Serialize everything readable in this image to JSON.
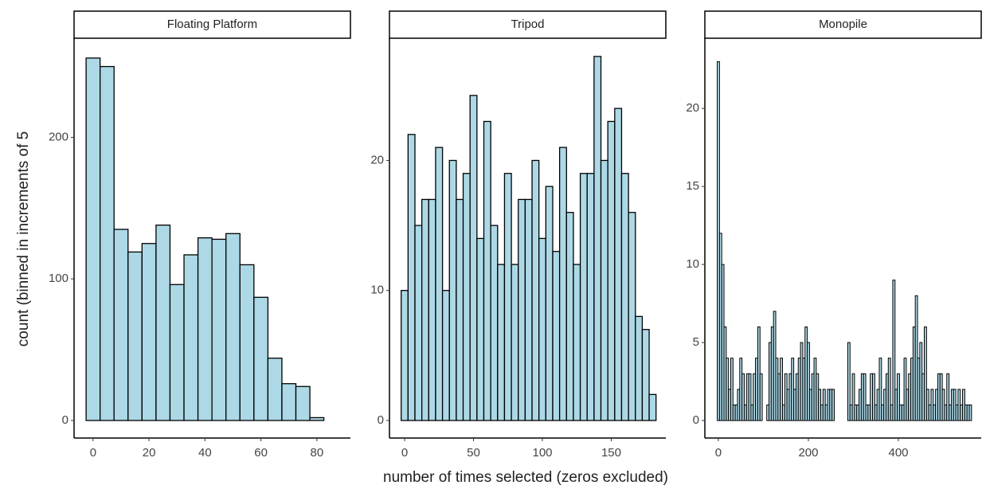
{
  "xlabel": "number of times selected (zeros excluded)",
  "ylabel": "count (binned in increments of 5",
  "chart_data": [
    {
      "type": "histogram",
      "title": "Floating Platform",
      "color": "#add8e6",
      "bins": [
        -2.5,
        2.5,
        7.5,
        12.5,
        17.5,
        22.5,
        27.5,
        32.5,
        37.5,
        42.5,
        47.5,
        52.5,
        57.5,
        62.5,
        67.5,
        72.5,
        77.5,
        82.5
      ],
      "values": [
        256,
        250,
        135,
        119,
        125,
        138,
        96,
        117,
        129,
        128,
        132,
        110,
        87,
        44,
        26,
        24,
        2
      ],
      "xlim": [
        -6.8,
        92
      ],
      "ylim": [
        -12.4,
        270
      ],
      "xticks": [
        0,
        20,
        40,
        60,
        80
      ],
      "yticks": [
        0,
        100,
        200
      ]
    },
    {
      "type": "histogram",
      "title": "Tripod",
      "color": "#add8e6",
      "bins": [
        -2.5,
        2.5,
        7.5,
        12.5,
        17.5,
        22.5,
        27.5,
        32.5,
        37.5,
        42.5,
        47.5,
        52.5,
        57.5,
        62.5,
        67.5,
        72.5,
        77.5,
        82.5,
        87.5,
        92.5,
        97.5,
        102.5,
        107.5,
        112.5,
        117.5,
        122.5,
        127.5,
        132.5,
        137.5,
        142.5,
        147.5,
        152.5,
        157.5,
        162.5,
        167.5,
        172.5,
        177.5,
        182.5
      ],
      "values": [
        10,
        22,
        15,
        17,
        17,
        21,
        10,
        20,
        17,
        19,
        25,
        14,
        23,
        15,
        12,
        19,
        12,
        17,
        17,
        20,
        14,
        18,
        13,
        21,
        16,
        12,
        19,
        19,
        28,
        20,
        23,
        24,
        19,
        16,
        8,
        7,
        2
      ],
      "xlim": [
        -11,
        189.6
      ],
      "ylim": [
        -1.35,
        29.4
      ],
      "xticks": [
        0,
        50,
        100,
        150
      ],
      "yticks": [
        0,
        10,
        20
      ]
    },
    {
      "type": "histogram",
      "title": "Monopile",
      "color": "#add8e6",
      "bins": [
        -2.5,
        2.5,
        7.5,
        12.5,
        17.5,
        22.5,
        27.5,
        32.5,
        37.5,
        42.5,
        47.5,
        52.5,
        57.5,
        62.5,
        67.5,
        72.5,
        77.5,
        82.5,
        87.5,
        92.5,
        97.5,
        102.5,
        107.5,
        112.5,
        117.5,
        122.5,
        127.5,
        132.5,
        137.5,
        142.5,
        147.5,
        152.5,
        157.5,
        162.5,
        167.5,
        172.5,
        177.5,
        182.5,
        187.5,
        192.5,
        197.5,
        202.5,
        207.5,
        212.5,
        217.5,
        222.5,
        227.5,
        232.5,
        237.5,
        242.5,
        247.5,
        252.5,
        257.5,
        262.5,
        267.5,
        272.5,
        277.5,
        282.5,
        287.5,
        292.5,
        297.5,
        302.5,
        307.5,
        312.5,
        317.5,
        322.5,
        327.5,
        332.5,
        337.5,
        342.5,
        347.5,
        352.5,
        357.5,
        362.5,
        367.5,
        372.5,
        377.5,
        382.5,
        387.5,
        392.5,
        397.5,
        402.5,
        407.5,
        412.5,
        417.5,
        422.5,
        427.5,
        432.5,
        437.5,
        442.5,
        447.5,
        452.5,
        457.5,
        462.5,
        467.5,
        472.5,
        477.5,
        482.5,
        487.5,
        492.5,
        497.5,
        502.5,
        507.5,
        512.5,
        517.5,
        522.5,
        527.5,
        532.5,
        537.5,
        542.5,
        547.5,
        552.5,
        557.5,
        562.5
      ],
      "values": [
        23,
        12,
        10,
        6,
        4,
        2,
        4,
        1,
        1,
        2,
        4,
        3,
        1,
        3,
        3,
        1,
        3,
        4,
        6,
        3,
        0,
        0,
        1,
        5,
        6,
        7,
        4,
        3,
        4,
        1,
        3,
        2,
        3,
        4,
        2,
        3,
        4,
        5,
        4,
        6,
        5,
        2,
        3,
        4,
        3,
        2,
        1,
        2,
        1,
        2,
        2,
        2,
        0,
        0,
        0,
        0,
        0,
        0,
        5,
        1,
        3,
        1,
        1,
        2,
        3,
        3,
        1,
        1,
        3,
        3,
        1,
        2,
        4,
        1,
        2,
        3,
        4,
        1,
        9,
        2,
        3,
        1,
        1,
        4,
        2,
        3,
        4,
        6,
        8,
        4,
        5,
        3,
        6,
        2,
        1,
        2,
        1,
        2,
        3,
        3,
        2,
        1,
        3,
        1,
        2,
        2,
        1,
        2,
        1,
        2,
        1,
        1,
        1
      ],
      "xlim": [
        -30,
        584
      ],
      "ylim": [
        -1.12,
        24.5
      ],
      "xticks": [
        0,
        200,
        400
      ],
      "yticks": [
        0,
        5,
        10,
        15,
        20
      ]
    }
  ]
}
